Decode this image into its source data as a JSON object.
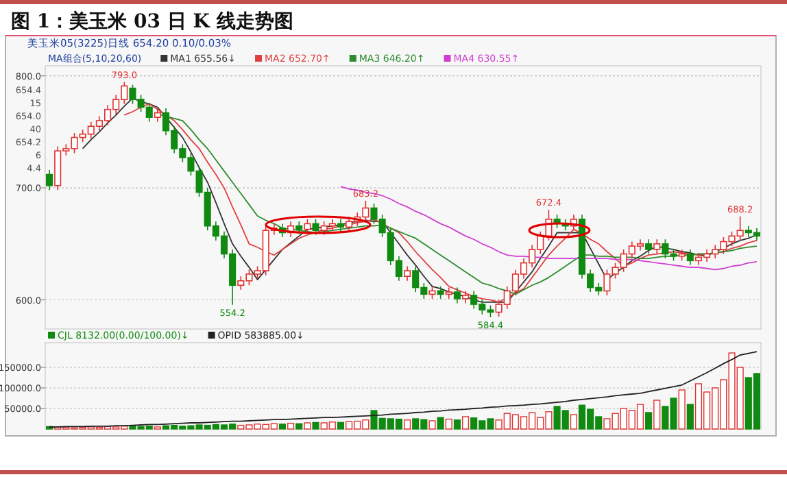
{
  "chart_data": [
    {
      "type": "candlestick",
      "title": "图 1：美玉米 03 日 K 线走势图",
      "subtitle": "美玉米05(3225)日线   654.20  0.10/0.03%",
      "legend_title": "MA组合(5,10,20,60)",
      "legend": "top left",
      "grid": "y",
      "categories": [
        null,
        null,
        null,
        null,
        null,
        null,
        null,
        null,
        null,
        null,
        null,
        null,
        null,
        null,
        null,
        null,
        null,
        null,
        null,
        null,
        null,
        null,
        null,
        null,
        null,
        null,
        null,
        null,
        null,
        null,
        null,
        null,
        null,
        null,
        null,
        null,
        null,
        null,
        null,
        null,
        null,
        null,
        null,
        null,
        null,
        null,
        null,
        null,
        null,
        null,
        null,
        null,
        null,
        null,
        null,
        null,
        null,
        null,
        null,
        null,
        null,
        null,
        null,
        null,
        null,
        null,
        null,
        null,
        null,
        null,
        null,
        null,
        null,
        null,
        null,
        null,
        null,
        null,
        null,
        null,
        null,
        null,
        null,
        null,
        null,
        null
      ],
      "ohlc": [
        [
          712,
          716,
          698,
          702
        ],
        [
          702,
          737,
          698,
          733
        ],
        [
          733,
          739,
          729,
          735
        ],
        [
          735,
          749,
          731,
          745
        ],
        [
          745,
          752,
          741,
          748
        ],
        [
          748,
          759,
          744,
          755
        ],
        [
          755,
          764,
          751,
          760
        ],
        [
          760,
          774,
          756,
          770
        ],
        [
          770,
          783,
          766,
          779
        ],
        [
          779,
          794.5,
          775,
          791
        ],
        [
          789,
          792,
          775,
          779
        ],
        [
          779,
          783,
          768,
          772
        ],
        [
          772,
          776,
          759,
          763
        ],
        [
          763,
          771,
          759,
          767
        ],
        [
          767,
          771,
          747,
          751
        ],
        [
          751,
          755,
          731,
          735
        ],
        [
          735,
          739,
          723,
          727
        ],
        [
          727,
          731,
          711,
          715
        ],
        [
          715,
          719,
          692,
          696
        ],
        [
          696,
          700,
          662,
          666
        ],
        [
          666,
          670,
          653,
          657
        ],
        [
          657,
          661,
          637,
          641
        ],
        [
          641,
          645,
          595.5,
          613
        ],
        [
          613,
          621,
          609,
          617
        ],
        [
          617,
          627,
          613,
          623
        ],
        [
          623,
          630,
          619,
          626
        ],
        [
          626,
          666,
          622,
          662
        ],
        [
          662,
          668,
          658,
          664
        ],
        [
          664,
          668,
          656,
          660
        ],
        [
          660,
          670,
          656,
          666
        ],
        [
          666,
          670,
          659,
          663
        ],
        [
          663,
          672,
          659,
          668
        ],
        [
          668,
          672,
          658,
          662
        ],
        [
          662,
          670,
          658,
          666
        ],
        [
          666,
          672,
          662,
          668
        ],
        [
          668,
          672,
          661,
          665
        ],
        [
          665,
          674,
          661,
          670
        ],
        [
          670,
          678,
          666,
          674
        ],
        [
          674,
          688.5,
          670,
          682
        ],
        [
          682,
          686,
          668,
          672
        ],
        [
          672,
          676,
          656,
          660
        ],
        [
          660,
          664,
          631,
          635
        ],
        [
          635,
          639,
          617,
          621
        ],
        [
          621,
          630,
          617,
          626
        ],
        [
          626,
          630,
          607,
          611
        ],
        [
          611,
          615,
          601,
          605
        ],
        [
          605,
          612,
          601,
          608
        ],
        [
          608,
          612,
          601,
          605
        ],
        [
          605,
          611,
          601,
          607
        ],
        [
          607,
          611,
          597,
          601
        ],
        [
          601,
          608,
          597,
          604
        ],
        [
          604,
          608,
          592,
          596
        ],
        [
          596,
          600,
          587,
          591
        ],
        [
          591,
          595,
          584.5,
          589
        ],
        [
          589,
          600,
          585,
          596
        ],
        [
          596,
          612,
          592,
          608
        ],
        [
          608,
          627,
          604,
          623
        ],
        [
          623,
          637,
          619,
          633
        ],
        [
          633,
          649,
          629,
          645
        ],
        [
          645,
          661,
          641,
          657
        ],
        [
          657,
          680.5,
          653,
          672
        ],
        [
          672,
          676,
          664,
          668
        ],
        [
          668,
          672,
          662,
          666
        ],
        [
          666,
          676,
          662,
          672
        ],
        [
          672,
          676,
          619,
          623
        ],
        [
          623,
          627,
          607,
          611
        ],
        [
          611,
          615,
          604,
          608
        ],
        [
          608,
          627,
          604,
          623
        ],
        [
          623,
          633,
          619,
          629
        ],
        [
          629,
          645,
          625,
          641
        ],
        [
          641,
          652,
          637,
          648
        ],
        [
          648,
          654,
          644,
          650
        ],
        [
          650,
          654,
          641,
          645
        ],
        [
          645,
          654,
          641,
          650
        ],
        [
          650,
          654,
          637,
          641
        ],
        [
          641,
          645,
          635,
          639
        ],
        [
          639,
          645,
          635,
          641
        ],
        [
          641,
          645,
          631,
          635
        ],
        [
          635,
          642,
          631,
          638
        ],
        [
          638,
          645,
          634,
          641
        ],
        [
          641,
          649,
          637,
          645
        ],
        [
          645,
          656,
          641,
          652
        ],
        [
          652,
          661,
          648,
          657
        ],
        [
          657,
          674.5,
          653,
          662
        ],
        [
          662,
          666,
          656,
          660
        ],
        [
          660,
          664,
          653,
          657
        ]
      ],
      "colors": [
        "#108a10",
        "#e03030",
        "#e03030",
        "#e03030",
        "#e03030",
        "#e03030",
        "#e03030",
        "#e03030",
        "#e03030",
        "#e03030",
        "#108a10",
        "#108a10",
        "#108a10",
        "#e03030",
        "#108a10",
        "#108a10",
        "#108a10",
        "#108a10",
        "#108a10",
        "#108a10",
        "#108a10",
        "#108a10",
        "#108a10",
        "#e03030",
        "#e03030",
        "#e03030",
        "#e03030",
        "#e03030",
        "#108a10",
        "#e03030",
        "#108a10",
        "#e03030",
        "#108a10",
        "#e03030",
        "#e03030",
        "#108a10",
        "#e03030",
        "#e03030",
        "#e03030",
        "#108a10",
        "#108a10",
        "#108a10",
        "#108a10",
        "#e03030",
        "#108a10",
        "#108a10",
        "#e03030",
        "#108a10",
        "#e03030",
        "#108a10",
        "#e03030",
        "#108a10",
        "#108a10",
        "#108a10",
        "#e03030",
        "#e03030",
        "#e03030",
        "#e03030",
        "#e03030",
        "#e03030",
        "#e03030",
        "#108a10",
        "#108a10",
        "#e03030",
        "#108a10",
        "#108a10",
        "#108a10",
        "#e03030",
        "#e03030",
        "#e03030",
        "#e03030",
        "#e03030",
        "#108a10",
        "#e03030",
        "#108a10",
        "#108a10",
        "#e03030",
        "#108a10",
        "#e03030",
        "#e03030",
        "#e03030",
        "#e03030",
        "#e03030",
        "#e03030",
        "#108a10",
        "#108a10"
      ],
      "series": [
        {
          "name": "MA1 655.56↓",
          "type": "line",
          "color": "#333333",
          "values": [
            null,
            null,
            null,
            null,
            735,
            743,
            750,
            758,
            765,
            773,
            780,
            777,
            775,
            772,
            763,
            754,
            745,
            732,
            718,
            705,
            687,
            668,
            650,
            639,
            629,
            618,
            627,
            636,
            645,
            651,
            657,
            663,
            664,
            665,
            666,
            667,
            669,
            670,
            671,
            670,
            670,
            660,
            650,
            640,
            631,
            621,
            612,
            610,
            607,
            605,
            603,
            600,
            598,
            598,
            598,
            598,
            607,
            616,
            625,
            637,
            648,
            660,
            660,
            660,
            660,
            646,
            632,
            618,
            624,
            629,
            635,
            639,
            644,
            648,
            646,
            645,
            643,
            642,
            640,
            639,
            643,
            646,
            650,
            653,
            655,
            658
          ]
        },
        {
          "name": "MA2 652.70↑",
          "type": "line",
          "color": "#e04040",
          "values": [
            null,
            null,
            null,
            null,
            null,
            null,
            null,
            null,
            null,
            765,
            768,
            772,
            775,
            770,
            765,
            760,
            752,
            743,
            735,
            723,
            712,
            700,
            683,
            667,
            650,
            647,
            643,
            640,
            645,
            650,
            655,
            658,
            660,
            663,
            664,
            666,
            667,
            669,
            670,
            672,
            668,
            664,
            660,
            652,
            643,
            635,
            627,
            620,
            612,
            609,
            606,
            603,
            601,
            600,
            598,
            602,
            606,
            610,
            620,
            630,
            640,
            648,
            655,
            663,
            659,
            654,
            650,
            643,
            637,
            630,
            633,
            637,
            640,
            641,
            642,
            643,
            642,
            641,
            640,
            641,
            642,
            643,
            646,
            648,
            651,
            653
          ]
        },
        {
          "name": "MA3 646.20↑",
          "type": "line",
          "color": "#2e8b2e",
          "values": [
            null,
            null,
            null,
            null,
            null,
            null,
            null,
            null,
            null,
            null,
            null,
            null,
            null,
            766,
            764,
            762,
            760,
            752,
            743,
            735,
            725,
            715,
            705,
            695,
            685,
            675,
            671,
            668,
            664,
            663,
            662,
            661,
            660,
            661,
            662,
            663,
            664,
            665,
            666,
            666,
            667,
            664,
            661,
            658,
            655,
            650,
            645,
            640,
            635,
            630,
            625,
            620,
            615,
            613,
            610,
            608,
            605,
            609,
            613,
            616,
            620,
            625,
            630,
            635,
            640,
            640,
            639,
            639,
            638,
            638,
            638,
            637,
            637,
            638,
            639,
            639,
            640,
            640,
            641,
            641,
            642,
            643,
            644,
            646,
            647,
            648
          ]
        },
        {
          "name": "MA4 630.55↑",
          "type": "line",
          "color": "#d040d0",
          "values": [
            null,
            null,
            null,
            null,
            null,
            null,
            null,
            null,
            null,
            null,
            null,
            null,
            null,
            null,
            null,
            null,
            null,
            null,
            null,
            null,
            null,
            null,
            null,
            null,
            null,
            null,
            null,
            null,
            null,
            null,
            null,
            null,
            null,
            null,
            null,
            701,
            699,
            698,
            696,
            695,
            693,
            690,
            686,
            683,
            679,
            676,
            672,
            668,
            665,
            661,
            657,
            654,
            650,
            647,
            643,
            640,
            639,
            639,
            638,
            638,
            637,
            637,
            637,
            637,
            637,
            637,
            637,
            637,
            636,
            636,
            636,
            635,
            634,
            633,
            632,
            631,
            630,
            629,
            629,
            628,
            627,
            628,
            630,
            631,
            633,
            634
          ]
        }
      ],
      "ylim": [
        574,
        809
      ],
      "yticks": [
        {
          "value": 600,
          "label": "600.0"
        },
        {
          "value": 700,
          "label": "700.0"
        },
        {
          "value": 800,
          "label": "800.0"
        }
      ],
      "annotations": [
        {
          "text": "793.0",
          "y": 794.5
        },
        {
          "text": "554.2",
          "y": 595.5
        },
        {
          "text": "683.2",
          "y": 688.5
        },
        {
          "text": "584.4",
          "y": 584.5
        },
        {
          "text": "672.4",
          "y": 680.5
        },
        {
          "text": "688.2",
          "y": 674.5
        },
        "654.4",
        "15",
        "654.0",
        "40",
        "654.2",
        "6",
        "4.4"
      ]
    },
    {
      "type": "bar",
      "legend": "top left",
      "grid": "y",
      "categories": [
        null,
        null,
        null,
        null,
        null,
        null,
        null,
        null,
        null,
        null,
        null,
        null,
        null,
        null,
        null,
        null,
        null,
        null,
        null,
        null,
        null,
        null,
        null,
        null,
        null,
        null,
        null,
        null,
        null,
        null,
        null,
        null,
        null,
        null,
        null,
        null,
        null,
        null,
        null,
        null,
        null,
        null,
        null,
        null,
        null,
        null,
        null,
        null,
        null,
        null,
        null,
        null,
        null,
        null,
        null,
        null,
        null,
        null,
        null,
        null,
        null,
        null,
        null,
        null,
        null,
        null,
        null,
        null,
        null,
        null,
        null,
        null,
        null,
        null,
        null,
        null,
        null,
        null,
        null,
        null,
        null,
        null,
        null,
        null,
        null,
        null
      ],
      "series": [
        {
          "name": "CJL  8132.00(0.00/100.00)↓",
          "type": "bar",
          "values": [
            6000,
            5000,
            4000,
            3000,
            4000,
            5000,
            4000,
            6000,
            5000,
            7000,
            8000,
            6000,
            7000,
            5000,
            8000,
            9000,
            7000,
            8000,
            10000,
            9000,
            11000,
            10000,
            12000,
            9000,
            10000,
            12000,
            11000,
            13000,
            12000,
            14000,
            13000,
            15000,
            16000,
            15000,
            17000,
            16000,
            18000,
            19000,
            22000,
            45000,
            26000,
            25000,
            24000,
            22000,
            25000,
            23000,
            20000,
            28000,
            24000,
            22000,
            30000,
            27000,
            20000,
            25000,
            22000,
            38000,
            35000,
            30000,
            40000,
            28000,
            42000,
            55000,
            45000,
            35000,
            58000,
            48000,
            30000,
            25000,
            38000,
            50000,
            45000,
            60000,
            40000,
            70000,
            55000,
            75000,
            95000,
            60000,
            110000,
            90000,
            100000,
            120000,
            185000,
            150000,
            125000,
            135000
          ],
          "colors": [
            "#108a10",
            "#e03030",
            "#e03030",
            "#e03030",
            "#e03030",
            "#e03030",
            "#e03030",
            "#e03030",
            "#e03030",
            "#e03030",
            "#108a10",
            "#108a10",
            "#108a10",
            "#e03030",
            "#108a10",
            "#108a10",
            "#108a10",
            "#108a10",
            "#108a10",
            "#108a10",
            "#108a10",
            "#108a10",
            "#108a10",
            "#e03030",
            "#e03030",
            "#e03030",
            "#e03030",
            "#e03030",
            "#108a10",
            "#e03030",
            "#108a10",
            "#e03030",
            "#108a10",
            "#e03030",
            "#e03030",
            "#108a10",
            "#e03030",
            "#e03030",
            "#e03030",
            "#108a10",
            "#108a10",
            "#108a10",
            "#108a10",
            "#e03030",
            "#108a10",
            "#108a10",
            "#e03030",
            "#108a10",
            "#e03030",
            "#108a10",
            "#e03030",
            "#108a10",
            "#108a10",
            "#108a10",
            "#e03030",
            "#e03030",
            "#e03030",
            "#e03030",
            "#e03030",
            "#e03030",
            "#e03030",
            "#108a10",
            "#108a10",
            "#e03030",
            "#108a10",
            "#108a10",
            "#108a10",
            "#e03030",
            "#e03030",
            "#e03030",
            "#e03030",
            "#e03030",
            "#108a10",
            "#e03030",
            "#108a10",
            "#108a10",
            "#e03030",
            "#108a10",
            "#e03030",
            "#e03030",
            "#e03030",
            "#e03030",
            "#e03030",
            "#e03030",
            "#108a10",
            "#108a10"
          ]
        },
        {
          "name": "OPID  583885.00↓",
          "type": "line",
          "color": "#222222",
          "values": [
            5000,
            5000,
            6000,
            6000,
            6000,
            7000,
            7000,
            7000,
            8000,
            8000,
            9000,
            10000,
            11000,
            11000,
            12000,
            13000,
            14000,
            15000,
            15000,
            16000,
            17000,
            18000,
            19000,
            19000,
            20000,
            21000,
            22000,
            23000,
            23000,
            24000,
            25000,
            26000,
            27000,
            28000,
            28000,
            29000,
            30000,
            31000,
            32000,
            33000,
            34000,
            36000,
            37000,
            38000,
            40000,
            41000,
            43000,
            44000,
            46000,
            47000,
            48000,
            50000,
            51000,
            53000,
            54000,
            56000,
            57000,
            58000,
            60000,
            61000,
            63000,
            65000,
            67000,
            70000,
            72000,
            74000,
            76000,
            78000,
            81000,
            83000,
            85000,
            87000,
            91000,
            95000,
            99000,
            103000,
            107000,
            117000,
            127000,
            137000,
            148000,
            159000,
            169000,
            180000,
            184000,
            188000
          ]
        }
      ],
      "ylim": [
        0,
        210000
      ],
      "yticks": [
        {
          "value": 50000,
          "label": "50000.0"
        },
        {
          "value": 100000,
          "label": "100000.0"
        },
        {
          "value": 150000,
          "label": "150000.0"
        }
      ]
    }
  ]
}
